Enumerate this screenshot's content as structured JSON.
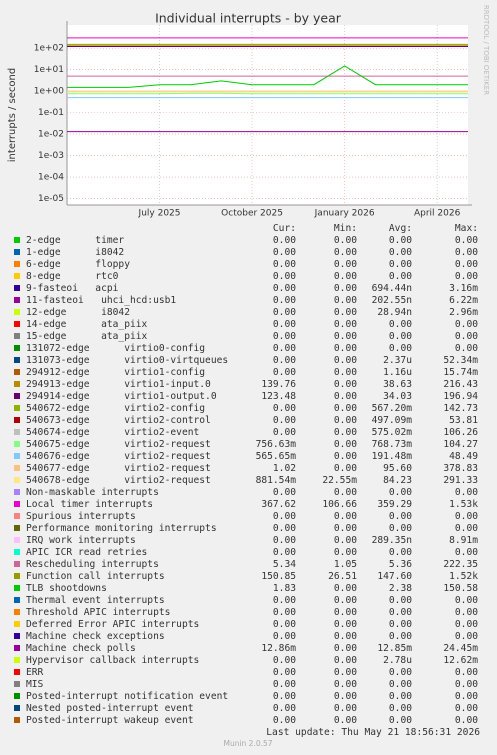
{
  "chart_data": {
    "type": "line",
    "title": "Individual interrupts - by year",
    "y_label": "interrupts / second",
    "side_label": "RRDTOOL / TOBI OETIKER",
    "log_scale": true,
    "grid": true,
    "ylim": [
      5e-06,
      1200
    ],
    "yticks": [
      {
        "value": 1e-05,
        "label": "1e-05"
      },
      {
        "value": 0.0001,
        "label": "1e-04"
      },
      {
        "value": 0.001,
        "label": "1e-03"
      },
      {
        "value": 0.01,
        "label": "1e-02"
      },
      {
        "value": 0.1,
        "label": "1e-01"
      },
      {
        "value": 1,
        "label": "1e+00"
      },
      {
        "value": 10,
        "label": "1e+01"
      },
      {
        "value": 100,
        "label": "1e+02"
      }
    ],
    "xlim": [
      "2025-04",
      "2026-05"
    ],
    "xticks": [
      {
        "value": "2025-07",
        "label": "July 2025"
      },
      {
        "value": "2025-10",
        "label": "October 2025"
      },
      {
        "value": "2026-01",
        "label": "January 2026"
      },
      {
        "value": "2026-04",
        "label": "April 2026"
      }
    ],
    "x": [
      "2025-04",
      "2025-05",
      "2025-06",
      "2025-07",
      "2025-08",
      "2025-09",
      "2025-10",
      "2025-11",
      "2025-12",
      "2026-01",
      "2026-02",
      "2026-03",
      "2026-04",
      "2026-05"
    ],
    "legend_columns": [
      "Cur:",
      "Min:",
      "Avg:",
      "Max:"
    ],
    "series": [
      {
        "name": "2-edge      timer",
        "color": "#00CC00",
        "stats": [
          "0.00",
          "0.00",
          "0.00",
          "0.00"
        ]
      },
      {
        "name": "1-edge      i8042",
        "color": "#0066B3",
        "stats": [
          "0.00",
          "0.00",
          "0.00",
          "0.00"
        ]
      },
      {
        "name": "6-edge      floppy",
        "color": "#FF8000",
        "stats": [
          "0.00",
          "0.00",
          "0.00",
          "0.00"
        ]
      },
      {
        "name": "8-edge      rtc0",
        "color": "#FFCC00",
        "stats": [
          "0.00",
          "0.00",
          "0.00",
          "0.00"
        ]
      },
      {
        "name": "9-fasteoi   acpi",
        "color": "#330099",
        "stats": [
          "0.00",
          "0.00",
          "694.44n",
          "3.16m"
        ]
      },
      {
        "name": "11-fasteoi   uhci_hcd:usb1",
        "color": "#990099",
        "stats": [
          "0.00",
          "0.00",
          "202.55n",
          "6.22m"
        ]
      },
      {
        "name": "12-edge      i8042",
        "color": "#CCFF00",
        "stats": [
          "0.00",
          "0.00",
          "28.94n",
          "2.96m"
        ]
      },
      {
        "name": "14-edge      ata_piix",
        "color": "#FF0000",
        "stats": [
          "0.00",
          "0.00",
          "0.00",
          "0.00"
        ]
      },
      {
        "name": "15-edge      ata_piix",
        "color": "#808080",
        "stats": [
          "0.00",
          "0.00",
          "0.00",
          "0.00"
        ]
      },
      {
        "name": "131072-edge      virtio0-config",
        "color": "#008F00",
        "stats": [
          "0.00",
          "0.00",
          "0.00",
          "0.00"
        ]
      },
      {
        "name": "131073-edge      virtio0-virtqueues",
        "color": "#00487D",
        "stats": [
          "0.00",
          "0.00",
          "2.37u",
          "52.34m"
        ]
      },
      {
        "name": "294912-edge      virtio1-config",
        "color": "#B35A00",
        "stats": [
          "0.00",
          "0.00",
          "1.16u",
          "15.74m"
        ]
      },
      {
        "name": "294913-edge      virtio1-input.0",
        "color": "#B38F00",
        "stats": [
          "139.76",
          "0.00",
          "38.63",
          "216.43"
        ],
        "values": [
          130,
          130,
          130,
          130,
          130,
          130,
          130,
          130,
          130,
          130,
          130,
          130,
          130,
          130
        ]
      },
      {
        "name": "294914-edge      virtio1-output.0",
        "color": "#6B006B",
        "stats": [
          "123.48",
          "0.00",
          "34.03",
          "196.94"
        ],
        "values": [
          120,
          120,
          120,
          120,
          120,
          120,
          120,
          120,
          120,
          120,
          120,
          120,
          120,
          120
        ]
      },
      {
        "name": "540672-edge      virtio2-config",
        "color": "#8FB300",
        "stats": [
          "0.00",
          "0.00",
          "567.20m",
          "142.73"
        ]
      },
      {
        "name": "540673-edge      virtio2-control",
        "color": "#B30000",
        "stats": [
          "0.00",
          "0.00",
          "497.09m",
          "53.81"
        ]
      },
      {
        "name": "540674-edge      virtio2-event",
        "color": "#BEBEBE",
        "stats": [
          "0.00",
          "0.00",
          "575.02m",
          "106.26"
        ]
      },
      {
        "name": "540675-edge      virtio2-request",
        "color": "#80FF80",
        "stats": [
          "756.63m",
          "0.00",
          "768.73m",
          "104.27"
        ],
        "values": [
          0.75,
          0.75,
          0.75,
          0.75,
          0.8,
          0.8,
          0.75,
          0.75,
          0.75,
          0.75,
          0.75,
          0.75,
          0.75,
          0.75
        ]
      },
      {
        "name": "540676-edge      virtio2-request",
        "color": "#80C9FF",
        "stats": [
          "565.65m",
          "0.00",
          "191.48m",
          "48.49"
        ],
        "values": [
          0.5,
          0.5,
          0.5,
          0.5,
          0.5,
          0.5,
          0.5,
          0.5,
          0.5,
          0.5,
          0.5,
          0.5,
          0.5,
          0.5
        ]
      },
      {
        "name": "540677-edge      virtio2-request",
        "color": "#FFC080",
        "stats": [
          "1.02",
          "0.00",
          "95.60",
          "378.83"
        ],
        "values": [
          1,
          1,
          1,
          1,
          1,
          1,
          1,
          1,
          1,
          1,
          1,
          1,
          1,
          1
        ]
      },
      {
        "name": "540678-edge      virtio2-request",
        "color": "#FFE680",
        "stats": [
          "881.54m",
          "22.55m",
          "84.23",
          "291.33"
        ],
        "values": [
          0.9,
          0.9,
          0.9,
          0.9,
          0.9,
          0.9,
          0.9,
          0.9,
          0.9,
          0.9,
          0.9,
          0.9,
          0.9,
          0.9
        ]
      },
      {
        "name": "Non-maskable interrupts",
        "color": "#AA80FF",
        "stats": [
          "0.00",
          "0.00",
          "0.00",
          "0.00"
        ]
      },
      {
        "name": "Local timer interrupts",
        "color": "#EE00CC",
        "stats": [
          "367.62",
          "106.66",
          "359.29",
          "1.53k"
        ],
        "values": [
          300,
          300,
          300,
          300,
          300,
          300,
          300,
          300,
          300,
          300,
          300,
          300,
          300,
          300
        ]
      },
      {
        "name": "Spurious interrupts",
        "color": "#FF8080",
        "stats": [
          "0.00",
          "0.00",
          "0.00",
          "0.00"
        ]
      },
      {
        "name": "Performance monitoring interrupts",
        "color": "#666600",
        "stats": [
          "0.00",
          "0.00",
          "0.00",
          "0.00"
        ]
      },
      {
        "name": "IRQ work interrupts",
        "color": "#FFBFFF",
        "stats": [
          "0.00",
          "0.00",
          "289.35n",
          "8.91m"
        ]
      },
      {
        "name": "APIC ICR read retries",
        "color": "#00FFCC",
        "stats": [
          "0.00",
          "0.00",
          "0.00",
          "0.00"
        ]
      },
      {
        "name": "Rescheduling interrupts",
        "color": "#CC6699",
        "stats": [
          "5.34",
          "1.05",
          "5.36",
          "222.35"
        ],
        "values": [
          5,
          5,
          5,
          5,
          5,
          5,
          5,
          5,
          5,
          5,
          5,
          5,
          5,
          5
        ]
      },
      {
        "name": "Function call interrupts",
        "color": "#999900",
        "stats": [
          "150.85",
          "26.51",
          "147.60",
          "1.52k"
        ],
        "values": [
          150,
          150,
          150,
          150,
          150,
          150,
          150,
          150,
          150,
          150,
          150,
          150,
          150,
          150
        ]
      },
      {
        "name": "TLB shootdowns",
        "color": "#00CC00",
        "stats": [
          "1.83",
          "0.00",
          "2.38",
          "150.58"
        ],
        "values": [
          1.5,
          1.5,
          1.5,
          2,
          2,
          3,
          2,
          2,
          2,
          15,
          2,
          2,
          2,
          2
        ]
      },
      {
        "name": "Thermal event interrupts",
        "color": "#0066B3",
        "stats": [
          "0.00",
          "0.00",
          "0.00",
          "0.00"
        ]
      },
      {
        "name": "Threshold APIC interrupts",
        "color": "#FF8000",
        "stats": [
          "0.00",
          "0.00",
          "0.00",
          "0.00"
        ]
      },
      {
        "name": "Deferred Error APIC interrupts",
        "color": "#FFCC00",
        "stats": [
          "0.00",
          "0.00",
          "0.00",
          "0.00"
        ]
      },
      {
        "name": "Machine check exceptions",
        "color": "#330099",
        "stats": [
          "0.00",
          "0.00",
          "0.00",
          "0.00"
        ]
      },
      {
        "name": "Machine check polls",
        "color": "#990099",
        "stats": [
          "12.86m",
          "0.00",
          "12.85m",
          "24.45m"
        ],
        "values": [
          0.013,
          0.013,
          0.013,
          0.013,
          0.013,
          0.013,
          0.013,
          0.013,
          0.013,
          0.013,
          0.013,
          0.013,
          0.013,
          0.013
        ]
      },
      {
        "name": "Hypervisor callback interrupts",
        "color": "#CCFF00",
        "stats": [
          "0.00",
          "0.00",
          "2.78u",
          "12.62m"
        ]
      },
      {
        "name": "ERR",
        "color": "#FF0000",
        "stats": [
          "0.00",
          "0.00",
          "0.00",
          "0.00"
        ]
      },
      {
        "name": "MIS",
        "color": "#808080",
        "stats": [
          "0.00",
          "0.00",
          "0.00",
          "0.00"
        ]
      },
      {
        "name": "Posted-interrupt notification event",
        "color": "#008F00",
        "stats": [
          "0.00",
          "0.00",
          "0.00",
          "0.00"
        ]
      },
      {
        "name": "Nested posted-interrupt event",
        "color": "#00487D",
        "stats": [
          "0.00",
          "0.00",
          "0.00",
          "0.00"
        ]
      },
      {
        "name": "Posted-interrupt wakeup event",
        "color": "#B35A00",
        "stats": [
          "0.00",
          "0.00",
          "0.00",
          "0.00"
        ]
      }
    ],
    "last_update": "Last update: Thu May 21 18:56:31 2026",
    "footer": "Munin 2.0.57"
  }
}
